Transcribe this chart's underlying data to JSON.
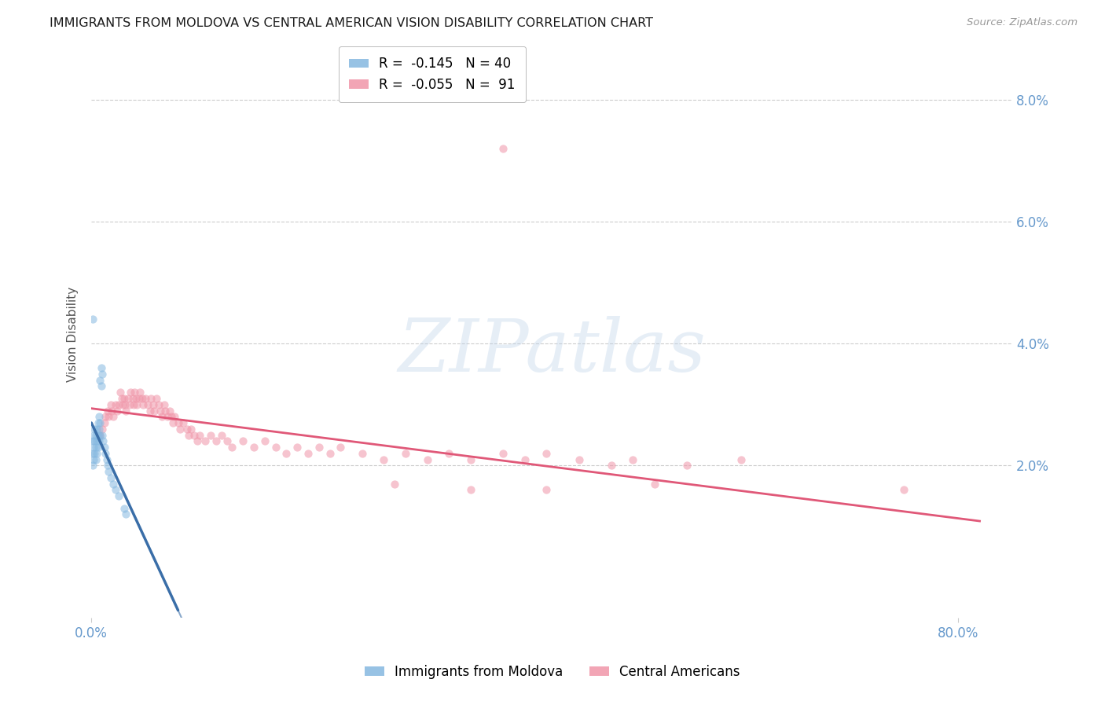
{
  "title": "IMMIGRANTS FROM MOLDOVA VS CENTRAL AMERICAN VISION DISABILITY CORRELATION CHART",
  "source": "Source: ZipAtlas.com",
  "ylabel": "Vision Disability",
  "xlim": [
    0.0,
    0.85
  ],
  "ylim": [
    -0.005,
    0.088
  ],
  "xtick_positions": [
    0.0,
    0.8
  ],
  "xtick_labels": [
    "0.0%",
    "80.0%"
  ],
  "ytick_positions": [
    0.02,
    0.04,
    0.06,
    0.08
  ],
  "ytick_labels": [
    "2.0%",
    "4.0%",
    "6.0%",
    "8.0%"
  ],
  "moldova_x": [
    0.001,
    0.001,
    0.001,
    0.002,
    0.002,
    0.002,
    0.003,
    0.003,
    0.003,
    0.004,
    0.004,
    0.004,
    0.005,
    0.005,
    0.005,
    0.006,
    0.006,
    0.006,
    0.007,
    0.007,
    0.007,
    0.008,
    0.008,
    0.008,
    0.009,
    0.009,
    0.01,
    0.01,
    0.011,
    0.012,
    0.013,
    0.014,
    0.015,
    0.016,
    0.018,
    0.02,
    0.022,
    0.025,
    0.03,
    0.032
  ],
  "moldova_y": [
    0.024,
    0.022,
    0.02,
    0.025,
    0.023,
    0.021,
    0.026,
    0.024,
    0.022,
    0.025,
    0.023,
    0.021,
    0.026,
    0.024,
    0.022,
    0.027,
    0.025,
    0.023,
    0.028,
    0.026,
    0.024,
    0.027,
    0.025,
    0.034,
    0.036,
    0.033,
    0.035,
    0.025,
    0.024,
    0.023,
    0.022,
    0.021,
    0.02,
    0.019,
    0.018,
    0.017,
    0.016,
    0.015,
    0.013,
    0.012
  ],
  "moldova_outlier_x": [
    0.001
  ],
  "moldova_outlier_y": [
    0.044
  ],
  "central_x": [
    0.008,
    0.01,
    0.012,
    0.013,
    0.015,
    0.016,
    0.018,
    0.019,
    0.02,
    0.022,
    0.024,
    0.025,
    0.027,
    0.028,
    0.029,
    0.03,
    0.031,
    0.032,
    0.034,
    0.035,
    0.036,
    0.038,
    0.039,
    0.04,
    0.041,
    0.042,
    0.044,
    0.045,
    0.047,
    0.048,
    0.05,
    0.052,
    0.054,
    0.055,
    0.057,
    0.058,
    0.06,
    0.062,
    0.064,
    0.065,
    0.067,
    0.068,
    0.07,
    0.072,
    0.074,
    0.075,
    0.077,
    0.08,
    0.082,
    0.085,
    0.088,
    0.09,
    0.092,
    0.095,
    0.098,
    0.1,
    0.105,
    0.11,
    0.115,
    0.12,
    0.125,
    0.13,
    0.14,
    0.15,
    0.16,
    0.17,
    0.18,
    0.19,
    0.2,
    0.21,
    0.22,
    0.23,
    0.25,
    0.27,
    0.29,
    0.31,
    0.33,
    0.35,
    0.38,
    0.4,
    0.42,
    0.45,
    0.48,
    0.5,
    0.55,
    0.6,
    0.35,
    0.28,
    0.42,
    0.52,
    0.75
  ],
  "central_y": [
    0.025,
    0.026,
    0.027,
    0.028,
    0.029,
    0.028,
    0.03,
    0.029,
    0.028,
    0.03,
    0.029,
    0.03,
    0.032,
    0.031,
    0.03,
    0.031,
    0.03,
    0.029,
    0.031,
    0.03,
    0.032,
    0.031,
    0.03,
    0.032,
    0.031,
    0.03,
    0.031,
    0.032,
    0.031,
    0.03,
    0.031,
    0.03,
    0.029,
    0.031,
    0.03,
    0.029,
    0.031,
    0.03,
    0.029,
    0.028,
    0.03,
    0.029,
    0.028,
    0.029,
    0.028,
    0.027,
    0.028,
    0.027,
    0.026,
    0.027,
    0.026,
    0.025,
    0.026,
    0.025,
    0.024,
    0.025,
    0.024,
    0.025,
    0.024,
    0.025,
    0.024,
    0.023,
    0.024,
    0.023,
    0.024,
    0.023,
    0.022,
    0.023,
    0.022,
    0.023,
    0.022,
    0.023,
    0.022,
    0.021,
    0.022,
    0.021,
    0.022,
    0.021,
    0.022,
    0.021,
    0.022,
    0.021,
    0.02,
    0.021,
    0.02,
    0.021,
    0.016,
    0.017,
    0.016,
    0.017,
    0.016
  ],
  "central_outlier_x": [
    0.38
  ],
  "central_outlier_y": [
    0.072
  ],
  "watermark_text": "ZIPatlas",
  "bg_color": "#ffffff",
  "scatter_alpha": 0.55,
  "scatter_size": 55,
  "moldova_color": "#85b8e0",
  "central_color": "#f095a8",
  "moldova_line_color": "#3a6ea8",
  "central_line_color": "#e05878",
  "grid_color": "#cccccc",
  "tick_color": "#6699cc",
  "title_fontsize": 11.5,
  "source_fontsize": 9.5,
  "ylabel_fontsize": 11,
  "legend_fontsize": 12
}
